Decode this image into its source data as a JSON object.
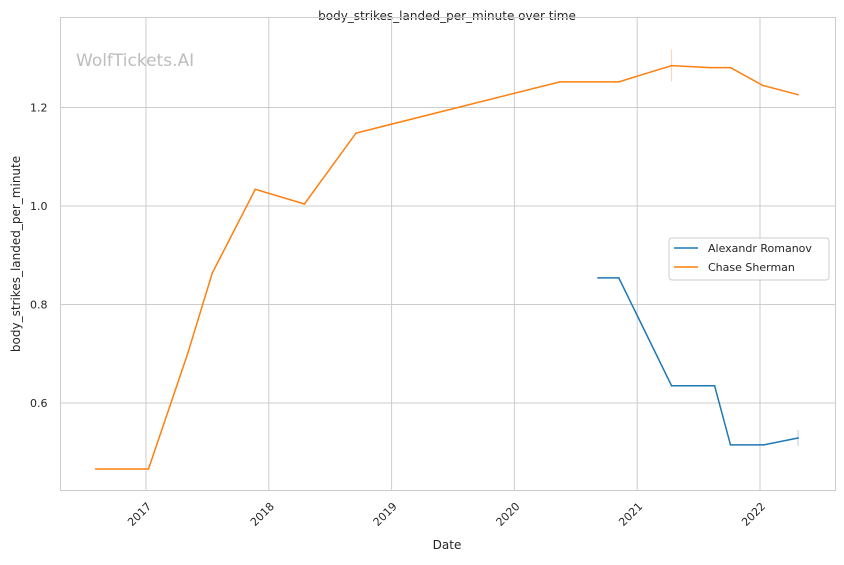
{
  "chart_data": {
    "type": "line",
    "title": "body_strikes_landed_per_minute over time",
    "xlabel": "Date",
    "ylabel": "body_strikes_landed_per_minute",
    "watermark": "WolfTickets.AI",
    "xlim": [
      2016.3,
      2022.6
    ],
    "ylim": [
      0.423,
      1.385
    ],
    "xticks": [
      2017,
      2018,
      2019,
      2020,
      2021,
      2022
    ],
    "xtick_labels": [
      "2017",
      "2018",
      "2019",
      "2020",
      "2021",
      "2022"
    ],
    "yticks": [
      0.6,
      0.8,
      1.0,
      1.2
    ],
    "ytick_labels": [
      "0.6",
      "0.8",
      "1.0",
      "1.2"
    ],
    "grid": true,
    "legend_position": "center-right",
    "series": [
      {
        "name": "Alexandr Romanov",
        "color": "#1f77b4",
        "x": [
          2020.68,
          2020.85,
          2021.28,
          2021.63,
          2021.76,
          2022.03,
          2022.31
        ],
        "y": [
          0.854,
          0.854,
          0.635,
          0.635,
          0.515,
          0.515,
          0.529
        ],
        "errorbars": [
          {
            "x": 2022.31,
            "low": 0.513,
            "high": 0.545
          }
        ]
      },
      {
        "name": "Chase Sherman",
        "color": "#ff7f0e",
        "x": [
          2016.59,
          2017.02,
          2017.34,
          2017.54,
          2017.89,
          2018.29,
          2018.71,
          2020.37,
          2020.85,
          2021.28,
          2021.59,
          2021.76,
          2022.02,
          2022.31
        ],
        "y": [
          0.466,
          0.466,
          0.701,
          0.864,
          1.034,
          1.004,
          1.148,
          1.252,
          1.252,
          1.285,
          1.281,
          1.281,
          1.245,
          1.226
        ],
        "errorbars": [
          {
            "x": 2021.28,
            "low": 1.253,
            "high": 1.318
          }
        ]
      }
    ]
  }
}
